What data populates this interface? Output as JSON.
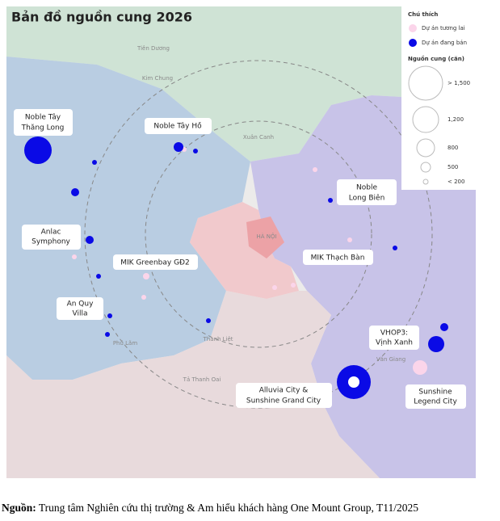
{
  "title": "Bản đồ nguồn cung 2026",
  "legend": {
    "heading": "Chú thích",
    "items": [
      "Dự án tương lai",
      "Dự án đang bán"
    ],
    "size_heading": "Nguồn cung (căn)",
    "size_labels": [
      "> 1,500",
      "1,200",
      "800",
      "500",
      "< 200"
    ]
  },
  "projects": [
    [
      "Noble Tây",
      "Thăng Long"
    ],
    [
      "Noble Tây Hồ"
    ],
    [
      "Anlac",
      "Symphony"
    ],
    [
      "MIK Greenbay GĐ2"
    ],
    [
      "An Quy",
      "Villa"
    ],
    [
      "Noble",
      "Long Biên"
    ],
    [
      "MIK Thạch Bàn"
    ],
    [
      "VHOP3:",
      "Vịnh Xanh"
    ],
    [
      "Alluvia City &",
      "Sunshine Grand City"
    ],
    [
      "Sunshine",
      "Legend City"
    ]
  ],
  "map_labels": [
    "HÀ NỘI",
    "Tiên Dương",
    "Kim Chung",
    "Xuân Canh",
    "Phú Lãm",
    "Văn Giang",
    "Thanh Liệt",
    "Tả Thanh Oai"
  ],
  "source": {
    "label": "Nguồn:",
    "text": " Trung tâm Nghiên cứu thị trường & Am hiểu khách hàng One Mount Group, T11/2025"
  }
}
